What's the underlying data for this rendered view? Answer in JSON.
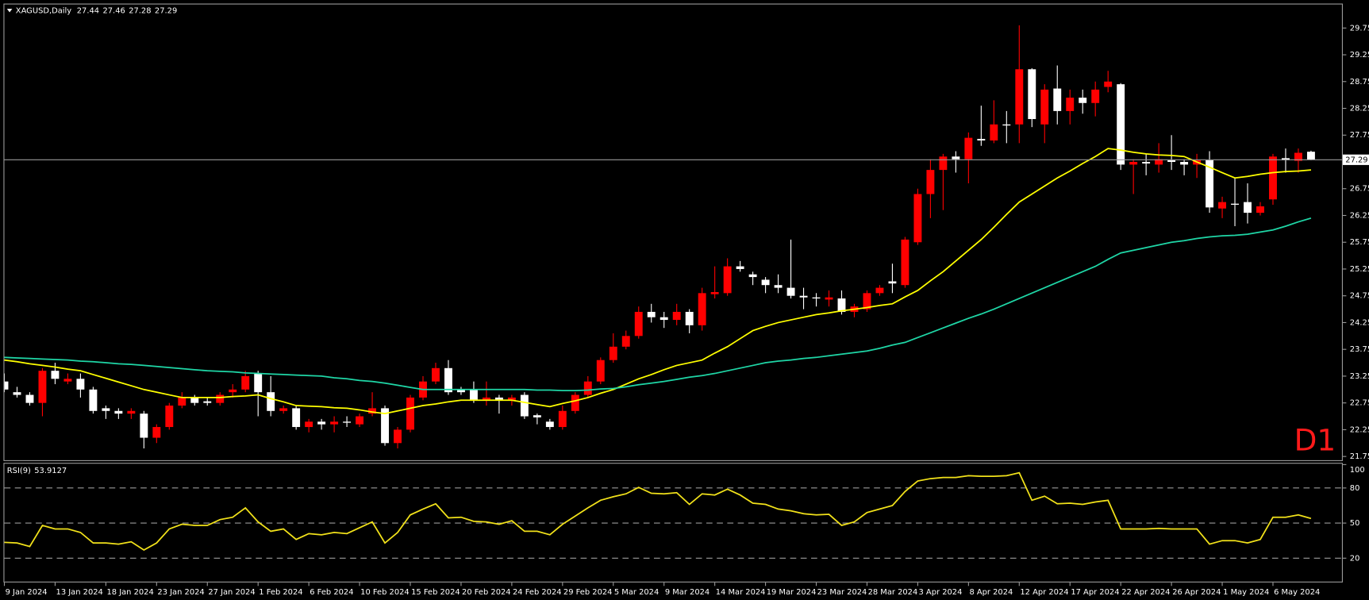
{
  "chart_data": [
    {
      "type": "candlestick",
      "title": "XAGUSD,Daily",
      "annotation": "D1",
      "categories": [
        "9 Jan 2024",
        null,
        null,
        null,
        "13 Jan 2024",
        null,
        null,
        null,
        "18 Jan 2024",
        null,
        null,
        null,
        "23 Jan 2024",
        null,
        null,
        null,
        "27 Jan 2024",
        null,
        null,
        null,
        "1 Feb 2024",
        null,
        null,
        null,
        "6 Feb 2024",
        null,
        null,
        null,
        "10 Feb 2024",
        null,
        null,
        null,
        "15 Feb 2024",
        null,
        null,
        null,
        "20 Feb 2024",
        null,
        null,
        null,
        "24 Feb 2024",
        null,
        null,
        null,
        "29 Feb 2024",
        null,
        null,
        null,
        "5 Mar 2024",
        null,
        null,
        null,
        "9 Mar 2024",
        null,
        null,
        null,
        "14 Mar 2024",
        null,
        null,
        null,
        "19 Mar 2024",
        null,
        null,
        null,
        "23 Mar 2024",
        null,
        null,
        null,
        "28 Mar 2024",
        null,
        null,
        null,
        "3 Apr 2024",
        null,
        null,
        null,
        "8 Apr 2024",
        null,
        null,
        null,
        "12 Apr 2024",
        null,
        null,
        null,
        "17 Apr 2024",
        null,
        null,
        null,
        "22 Apr 2024",
        null,
        null,
        null,
        "26 Apr 2024",
        null,
        null,
        null,
        "1 May 2024",
        null,
        null,
        null,
        "6 May 2024",
        null,
        null,
        null
      ],
      "open": [
        23.15,
        22.95,
        22.9,
        22.75,
        23.35,
        23.15,
        23.2,
        23.0,
        22.65,
        22.6,
        22.55,
        22.55,
        22.1,
        22.3,
        22.7,
        22.85,
        22.78,
        22.75,
        22.95,
        23.0,
        23.3,
        22.95,
        22.6,
        22.65,
        22.3,
        22.4,
        22.35,
        22.4,
        22.35,
        22.55,
        22.65,
        22.0,
        22.25,
        22.85,
        23.15,
        23.4,
        23.0,
        23.0,
        22.8,
        22.85,
        22.8,
        22.9,
        22.52,
        22.4,
        22.3,
        22.6,
        22.9,
        23.15,
        23.55,
        23.8,
        24.0,
        24.45,
        24.35,
        24.3,
        24.45,
        24.2,
        24.78,
        24.8,
        25.3,
        25.15,
        25.05,
        24.95,
        24.9,
        24.75,
        24.72,
        24.68,
        24.7,
        24.45,
        24.5,
        24.8,
        25.02,
        24.95,
        25.75,
        26.65,
        27.1,
        27.35,
        27.3,
        27.68,
        27.65,
        27.95,
        27.95,
        28.98,
        27.95,
        28.62,
        28.2,
        28.45,
        28.35,
        28.65,
        28.7,
        27.2,
        27.25,
        27.2,
        27.28,
        27.25,
        27.2,
        27.28,
        26.38,
        26.47,
        26.5,
        26.3,
        26.55,
        27.32,
        27.27,
        27.44
      ],
      "high": [
        23.3,
        23.05,
        22.95,
        23.4,
        23.5,
        23.3,
        23.3,
        23.05,
        22.7,
        22.65,
        22.65,
        22.6,
        22.35,
        22.75,
        22.95,
        22.9,
        22.85,
        22.95,
        23.1,
        23.35,
        23.35,
        23.25,
        22.7,
        22.7,
        22.45,
        22.45,
        22.5,
        22.5,
        22.55,
        22.95,
        22.7,
        22.3,
        22.9,
        23.25,
        23.5,
        23.55,
        23.05,
        23.15,
        23.15,
        22.9,
        22.9,
        22.95,
        22.55,
        22.45,
        22.7,
        22.95,
        23.25,
        23.6,
        24.05,
        24.1,
        24.55,
        24.6,
        24.45,
        24.6,
        24.5,
        24.9,
        25.3,
        25.45,
        25.4,
        25.2,
        25.1,
        25.15,
        25.8,
        24.9,
        24.8,
        24.85,
        24.85,
        24.6,
        24.85,
        24.95,
        25.35,
        25.85,
        26.75,
        27.3,
        27.4,
        27.45,
        27.8,
        28.3,
        28.4,
        28.2,
        29.8,
        29.0,
        28.7,
        29.05,
        28.6,
        28.6,
        28.75,
        28.95,
        28.72,
        27.3,
        27.4,
        27.6,
        27.75,
        27.3,
        27.4,
        27.45,
        26.6,
        26.95,
        26.85,
        26.5,
        27.4,
        27.5,
        27.5,
        27.46
      ],
      "low": [
        22.95,
        22.85,
        22.7,
        22.5,
        23.1,
        23.1,
        22.85,
        22.55,
        22.45,
        22.45,
        22.45,
        21.9,
        22.0,
        22.25,
        22.65,
        22.7,
        22.7,
        22.7,
        22.85,
        22.95,
        22.5,
        22.5,
        22.55,
        22.25,
        22.2,
        22.25,
        22.2,
        22.3,
        22.3,
        22.5,
        21.95,
        21.9,
        22.2,
        22.8,
        23.1,
        22.9,
        22.9,
        22.75,
        22.7,
        22.55,
        22.7,
        22.45,
        22.35,
        22.25,
        22.25,
        22.55,
        22.85,
        23.1,
        23.5,
        23.75,
        23.95,
        24.25,
        24.15,
        24.2,
        24.05,
        24.1,
        24.7,
        24.75,
        25.2,
        24.95,
        24.8,
        24.8,
        24.7,
        24.5,
        24.55,
        24.55,
        24.4,
        24.35,
        24.45,
        24.75,
        24.8,
        24.9,
        25.7,
        26.2,
        26.35,
        27.05,
        26.85,
        27.55,
        27.6,
        27.6,
        27.6,
        27.9,
        27.6,
        27.95,
        27.95,
        28.15,
        28.1,
        28.55,
        27.1,
        26.65,
        27.0,
        27.05,
        27.1,
        27.0,
        26.95,
        26.3,
        26.2,
        26.05,
        26.1,
        26.25,
        26.45,
        27.05,
        27.05,
        27.28
      ],
      "close": [
        23.0,
        22.9,
        22.75,
        23.35,
        23.2,
        23.2,
        23.0,
        22.6,
        22.6,
        22.55,
        22.6,
        22.1,
        22.3,
        22.7,
        22.85,
        22.75,
        22.75,
        22.9,
        23.0,
        23.25,
        22.95,
        22.6,
        22.65,
        22.3,
        22.4,
        22.35,
        22.4,
        22.38,
        22.5,
        22.65,
        22.0,
        22.25,
        22.85,
        23.15,
        23.4,
        22.95,
        22.95,
        22.8,
        22.85,
        22.8,
        22.85,
        22.5,
        22.48,
        22.3,
        22.6,
        22.9,
        23.15,
        23.55,
        23.8,
        24.0,
        24.45,
        24.35,
        24.3,
        24.45,
        24.2,
        24.8,
        24.82,
        25.3,
        25.25,
        25.1,
        24.95,
        24.9,
        24.75,
        24.72,
        24.7,
        24.72,
        24.45,
        24.55,
        24.8,
        24.9,
        24.98,
        25.8,
        26.65,
        27.1,
        27.35,
        27.3,
        27.7,
        27.65,
        27.95,
        27.93,
        28.98,
        28.05,
        28.6,
        28.2,
        28.45,
        28.35,
        28.6,
        28.75,
        27.2,
        27.25,
        27.22,
        27.3,
        27.25,
        27.2,
        27.28,
        26.4,
        26.5,
        26.45,
        26.3,
        26.42,
        27.35,
        27.28,
        27.42,
        27.29
      ],
      "up_color": "#ff0000",
      "down_color": "#ffffff",
      "series": [
        {
          "color": "#ffff00",
          "values": [
            23.55,
            23.52,
            23.48,
            23.45,
            23.42,
            23.38,
            23.35,
            23.28,
            23.21,
            23.14,
            23.07,
            23.0,
            22.95,
            22.9,
            22.85,
            22.85,
            22.85,
            22.85,
            22.87,
            22.88,
            22.9,
            22.83,
            22.77,
            22.7,
            22.69,
            22.68,
            22.66,
            22.65,
            22.62,
            22.58,
            22.55,
            22.6,
            22.65,
            22.7,
            22.73,
            22.77,
            22.8,
            22.8,
            22.8,
            22.8,
            22.8,
            22.76,
            22.72,
            22.68,
            22.74,
            22.79,
            22.85,
            22.93,
            23.0,
            23.1,
            23.2,
            23.28,
            23.37,
            23.45,
            23.5,
            23.55,
            23.68,
            23.8,
            23.95,
            24.1,
            24.18,
            24.25,
            24.3,
            24.35,
            24.4,
            24.43,
            24.47,
            24.5,
            24.53,
            24.57,
            24.6,
            24.73,
            24.85,
            25.03,
            25.2,
            25.4,
            25.6,
            25.8,
            26.03,
            26.27,
            26.5,
            26.65,
            26.8,
            26.95,
            27.08,
            27.22,
            27.35,
            27.5,
            27.47,
            27.43,
            27.4,
            27.38,
            27.37,
            27.35,
            27.25,
            27.15,
            27.05,
            26.95,
            26.98,
            27.02,
            27.05,
            27.07,
            27.08,
            27.1
          ]
        },
        {
          "color": "#1fd6a6",
          "values": [
            23.6,
            23.59,
            23.58,
            23.57,
            23.56,
            23.55,
            23.53,
            23.52,
            23.5,
            23.48,
            23.47,
            23.45,
            23.43,
            23.41,
            23.39,
            23.37,
            23.35,
            23.34,
            23.33,
            23.31,
            23.3,
            23.29,
            23.28,
            23.27,
            23.26,
            23.25,
            23.22,
            23.2,
            23.17,
            23.15,
            23.12,
            23.08,
            23.04,
            23.0,
            23.0,
            23.0,
            23.0,
            23.0,
            23.0,
            23.0,
            23.0,
            23.0,
            22.99,
            22.99,
            22.98,
            22.98,
            22.99,
            23.01,
            23.02,
            23.05,
            23.09,
            23.12,
            23.15,
            23.19,
            23.23,
            23.26,
            23.3,
            23.35,
            23.4,
            23.45,
            23.5,
            23.53,
            23.55,
            23.58,
            23.6,
            23.63,
            23.66,
            23.69,
            23.72,
            23.77,
            23.83,
            23.88,
            23.97,
            24.06,
            24.15,
            24.24,
            24.33,
            24.41,
            24.5,
            24.6,
            24.7,
            24.8,
            24.9,
            25.0,
            25.1,
            25.2,
            25.3,
            25.43,
            25.55,
            25.6,
            25.65,
            25.7,
            25.75,
            25.78,
            25.82,
            25.85,
            25.87,
            25.88,
            25.9,
            25.94,
            25.98,
            26.05,
            26.13,
            26.2
          ]
        }
      ],
      "ylim": [
        21.68,
        30.19
      ],
      "yticks": [
        21.75,
        22.25,
        22.75,
        23.25,
        23.75,
        24.25,
        24.75,
        25.25,
        25.75,
        26.25,
        26.75,
        27.75,
        28.25,
        28.75,
        29.25,
        29.75
      ],
      "grid": false
    },
    {
      "type": "line",
      "title": "RSI(9)",
      "color": "#f2e21a",
      "values": [
        33.5,
        33,
        30,
        48,
        45,
        45,
        42,
        33,
        33,
        32,
        34,
        27,
        33,
        45,
        49,
        48,
        48,
        53,
        55,
        63,
        51,
        43,
        45,
        36,
        41,
        40,
        42,
        41,
        46,
        51,
        33,
        42,
        57,
        62,
        66.5,
        54.5,
        55,
        51.5,
        51,
        49,
        52,
        43,
        43,
        40,
        49,
        56,
        63,
        69.5,
        72.5,
        75,
        80.5,
        75.5,
        75,
        76,
        66,
        75,
        74,
        79,
        74,
        67,
        66,
        62,
        60.5,
        58,
        57,
        57.5,
        48,
        51,
        59,
        62,
        65,
        77,
        86,
        88,
        89,
        89,
        90.5,
        90,
        90,
        90.5,
        93,
        69.5,
        73,
        66.5,
        67,
        66,
        68,
        69.5,
        45,
        45,
        45,
        45.5,
        45,
        45,
        45,
        32,
        35,
        35,
        33,
        36,
        55,
        55,
        57,
        53.9127
      ],
      "ylim": [
        0,
        100
      ],
      "yticks": [
        20,
        50,
        80,
        100
      ],
      "grid": false
    }
  ]
}
